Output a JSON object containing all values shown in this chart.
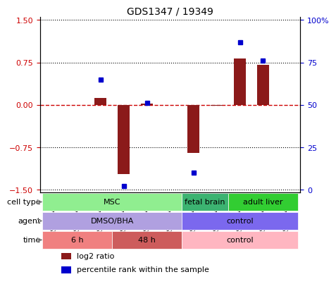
{
  "title": "GDS1347 / 19349",
  "samples": [
    "GSM60436",
    "GSM60437",
    "GSM60438",
    "GSM60440",
    "GSM60442",
    "GSM60444",
    "GSM60433",
    "GSM60434",
    "GSM60448",
    "GSM60450",
    "GSM60451"
  ],
  "log2_ratio": [
    0.0,
    0.0,
    0.12,
    -1.22,
    0.02,
    0.0,
    -0.85,
    -0.02,
    0.82,
    0.71,
    0.0
  ],
  "percentile_rank": [
    null,
    null,
    65,
    2,
    51,
    null,
    10,
    null,
    87,
    76,
    null
  ],
  "ylim": [
    -1.5,
    1.5
  ],
  "yticks_left": [
    -1.5,
    -0.75,
    0,
    0.75,
    1.5
  ],
  "yticks_right": [
    0,
    25,
    50,
    75,
    100
  ],
  "bar_color": "#8B1A1A",
  "dot_color": "#0000CD",
  "hline_color": "#CD0000",
  "hline_style": "dashed",
  "grid_color": "black",
  "grid_style": "dotted",
  "cell_type_groups": [
    {
      "label": "MSC",
      "start": 0,
      "end": 5,
      "color": "#90EE90"
    },
    {
      "label": "fetal brain",
      "start": 6,
      "end": 7,
      "color": "#3CB371"
    },
    {
      "label": "adult liver",
      "start": 8,
      "end": 10,
      "color": "#32CD32"
    }
  ],
  "agent_groups": [
    {
      "label": "DMSO/BHA",
      "start": 0,
      "end": 5,
      "color": "#B0A0E0"
    },
    {
      "label": "control",
      "start": 6,
      "end": 10,
      "color": "#7B68EE"
    }
  ],
  "time_groups": [
    {
      "label": "6 h",
      "start": 0,
      "end": 2,
      "color": "#F08080"
    },
    {
      "label": "48 h",
      "start": 3,
      "end": 5,
      "color": "#CD5C5C"
    },
    {
      "label": "control",
      "start": 6,
      "end": 10,
      "color": "#FFB6C1"
    }
  ],
  "row_labels": [
    "cell type",
    "agent",
    "time"
  ],
  "legend_items": [
    {
      "label": "log2 ratio",
      "color": "#8B1A1A"
    },
    {
      "label": "percentile rank within the sample",
      "color": "#0000CD"
    }
  ]
}
